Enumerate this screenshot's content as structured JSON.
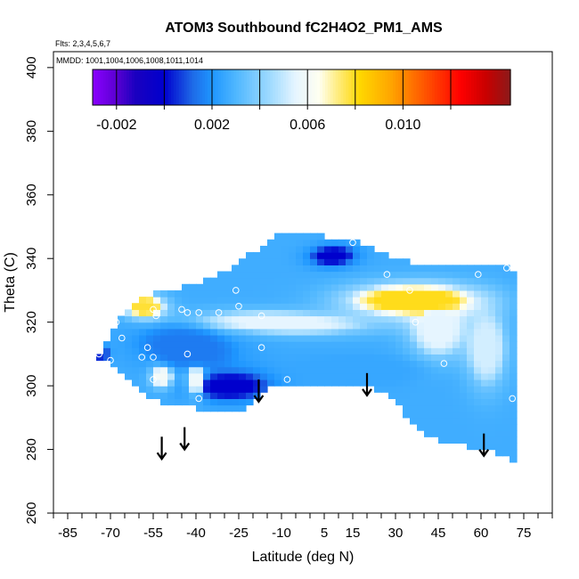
{
  "chart_data": {
    "type": "heatmap",
    "title": "ATOM3 Southbound fC2H4O2_PM1_AMS",
    "flights_label": "Flts: 2,3,4,5,6,7",
    "dates_label": "MMDD: 1001,1004,1006,1008,1011,1014",
    "xlabel": "Latitude (deg N)",
    "ylabel": "Theta (C)",
    "xlim": [
      -90,
      85
    ],
    "ylim": [
      260,
      405
    ],
    "x_ticks": [
      -85,
      -70,
      -55,
      -40,
      -25,
      -10,
      5,
      15,
      30,
      45,
      60,
      75
    ],
    "x_tick_labels": [
      "-85",
      "-70",
      "-55",
      "-40",
      "-25",
      "-10",
      "5",
      "15",
      "30",
      "45",
      "60",
      "75"
    ],
    "x_minor_ticks": [
      -90,
      -80,
      -75,
      -65,
      -60,
      -50,
      -45,
      -35,
      -30,
      -20,
      -15,
      -5,
      0,
      10,
      20,
      25,
      35,
      40,
      50,
      55,
      65,
      70,
      80,
      85
    ],
    "y_ticks": [
      260,
      280,
      300,
      320,
      340,
      360,
      380,
      400
    ],
    "y_tick_labels": [
      "260",
      "280",
      "300",
      "320",
      "340",
      "360",
      "380",
      "400"
    ],
    "colorbar": {
      "range": [
        -0.003,
        0.0145
      ],
      "boundaries": [
        -0.002,
        0,
        0.002,
        0.004,
        0.006,
        0.008,
        0.01,
        0.012
      ],
      "tick_values": [
        -0.002,
        0.002,
        0.006,
        0.01
      ],
      "tick_labels": [
        "-0.002",
        "0.002",
        "0.006",
        "0.010"
      ],
      "stops": [
        {
          "v": -0.003,
          "c": "#8b00ff"
        },
        {
          "v": -0.002,
          "c": "#5a00d2"
        },
        {
          "v": -0.0012,
          "c": "#1a00c0"
        },
        {
          "v": 0.0,
          "c": "#0000cd"
        },
        {
          "v": 0.0012,
          "c": "#1e6be8"
        },
        {
          "v": 0.002,
          "c": "#1e96ff"
        },
        {
          "v": 0.003,
          "c": "#4fb7ff"
        },
        {
          "v": 0.0045,
          "c": "#a3dcff"
        },
        {
          "v": 0.0055,
          "c": "#e6f5ff"
        },
        {
          "v": 0.0065,
          "c": "#fffff0"
        },
        {
          "v": 0.0072,
          "c": "#ffee88"
        },
        {
          "v": 0.0082,
          "c": "#ffd700"
        },
        {
          "v": 0.0095,
          "c": "#ffa500"
        },
        {
          "v": 0.0112,
          "c": "#ff4500"
        },
        {
          "v": 0.0124,
          "c": "#ff0000"
        },
        {
          "v": 0.0135,
          "c": "#c80000"
        },
        {
          "v": 0.0145,
          "c": "#8b1a1a"
        }
      ]
    },
    "coverage": {
      "lower_boundary": [
        [
          -75,
          309
        ],
        [
          -70,
          307
        ],
        [
          -65,
          303
        ],
        [
          -60,
          299
        ],
        [
          -56,
          296
        ],
        [
          -48,
          294
        ],
        [
          -40,
          293
        ],
        [
          -30,
          292
        ],
        [
          -22,
          293
        ],
        [
          -14,
          299
        ],
        [
          -5,
          300
        ],
        [
          5,
          300
        ],
        [
          15,
          300
        ],
        [
          22,
          299
        ],
        [
          27,
          297
        ],
        [
          32,
          293
        ],
        [
          37,
          287
        ],
        [
          42,
          284
        ],
        [
          48,
          282
        ],
        [
          55,
          281
        ],
        [
          62,
          280
        ],
        [
          66,
          278
        ],
        [
          71,
          277
        ]
      ],
      "upper_boundary": [
        [
          -75,
          309
        ],
        [
          -70,
          316
        ],
        [
          -66,
          322
        ],
        [
          -60,
          327
        ],
        [
          -55,
          329
        ],
        [
          -45,
          331
        ],
        [
          -37,
          333
        ],
        [
          -30,
          336
        ],
        [
          -24,
          340
        ],
        [
          -18,
          343
        ],
        [
          -13,
          347
        ],
        [
          -5,
          347
        ],
        [
          5,
          347
        ],
        [
          15,
          346
        ],
        [
          22,
          343
        ],
        [
          27,
          341
        ],
        [
          32,
          340
        ],
        [
          40,
          338
        ],
        [
          48,
          337
        ],
        [
          56,
          337
        ],
        [
          63,
          338
        ],
        [
          70,
          338
        ],
        [
          71,
          335
        ]
      ]
    },
    "field_base_value": 0.0027,
    "features": [
      {
        "lat": -28,
        "theta": 300,
        "value": 0.0,
        "rlat": 14,
        "rtheta": 4.5,
        "angle": 35
      },
      {
        "lat": -43,
        "theta": 312,
        "value": 0.0015,
        "rlat": 18,
        "rtheta": 8,
        "angle": 20
      },
      {
        "lat": 8,
        "theta": 341,
        "value": 0.0,
        "rlat": 8,
        "rtheta": 3.2,
        "angle": -10
      },
      {
        "lat": 36,
        "theta": 327,
        "value": 0.0125,
        "rlat": 10,
        "rtheta": 2.0,
        "angle": 0
      },
      {
        "lat": 36,
        "theta": 327,
        "value": 0.008,
        "rlat": 22,
        "rtheta": 5.0,
        "angle": 0
      },
      {
        "lat": -58,
        "theta": 325,
        "value": 0.0078,
        "rlat": 7,
        "rtheta": 3.5,
        "angle": 0
      },
      {
        "lat": -52,
        "theta": 303,
        "value": 0.006,
        "rlat": 4,
        "rtheta": 3.5,
        "angle": 0
      },
      {
        "lat": -40,
        "theta": 302,
        "value": 0.0058,
        "rlat": 3.5,
        "rtheta": 5,
        "angle": 0
      },
      {
        "lat": -10,
        "theta": 320,
        "value": 0.0055,
        "rlat": 30,
        "rtheta": 3.5,
        "angle": -5
      },
      {
        "lat": 45,
        "theta": 318,
        "value": 0.0055,
        "rlat": 10,
        "rtheta": 9,
        "angle": 0
      },
      {
        "lat": 62,
        "theta": 312,
        "value": 0.0052,
        "rlat": 7,
        "rtheta": 12,
        "angle": 0
      },
      {
        "lat": -73,
        "theta": 310,
        "value": 0.0005,
        "rlat": 2.5,
        "rtheta": 2.5,
        "angle": 0
      },
      {
        "lat": 15,
        "theta": 305,
        "value": 0.0025,
        "rlat": 30,
        "rtheta": 6,
        "angle": 0
      }
    ],
    "sample_points": [
      {
        "lat": 15,
        "theta": 345
      },
      {
        "lat": 35,
        "theta": 330
      },
      {
        "lat": 27,
        "theta": 335
      },
      {
        "lat": 59,
        "theta": 335
      },
      {
        "lat": 69,
        "theta": 337
      },
      {
        "lat": 37,
        "theta": 320
      },
      {
        "lat": 47,
        "theta": 307
      },
      {
        "lat": 71,
        "theta": 296
      },
      {
        "lat": -8,
        "theta": 302
      },
      {
        "lat": -17,
        "theta": 322
      },
      {
        "lat": -17,
        "theta": 312
      },
      {
        "lat": -26,
        "theta": 330
      },
      {
        "lat": -25,
        "theta": 325
      },
      {
        "lat": -32,
        "theta": 323
      },
      {
        "lat": -39,
        "theta": 323
      },
      {
        "lat": -43,
        "theta": 323
      },
      {
        "lat": -45,
        "theta": 324
      },
      {
        "lat": -55,
        "theta": 324
      },
      {
        "lat": -54,
        "theta": 322
      },
      {
        "lat": -43,
        "theta": 310
      },
      {
        "lat": -55,
        "theta": 309
      },
      {
        "lat": -57,
        "theta": 312
      },
      {
        "lat": -59,
        "theta": 309
      },
      {
        "lat": -68,
        "theta": 320
      },
      {
        "lat": -66,
        "theta": 315
      },
      {
        "lat": -70,
        "theta": 308
      },
      {
        "lat": -74,
        "theta": 310
      },
      {
        "lat": -39,
        "theta": 296
      },
      {
        "lat": -55,
        "theta": 302
      }
    ],
    "arrows": [
      {
        "lat": -52,
        "theta_top": 284,
        "theta_tip": 277
      },
      {
        "lat": -44,
        "theta_top": 287,
        "theta_tip": 280
      },
      {
        "lat": -18,
        "theta_top": 302,
        "theta_tip": 295
      },
      {
        "lat": 20,
        "theta_top": 304,
        "theta_tip": 297
      },
      {
        "lat": 61,
        "theta_top": 285,
        "theta_tip": 278
      }
    ]
  }
}
